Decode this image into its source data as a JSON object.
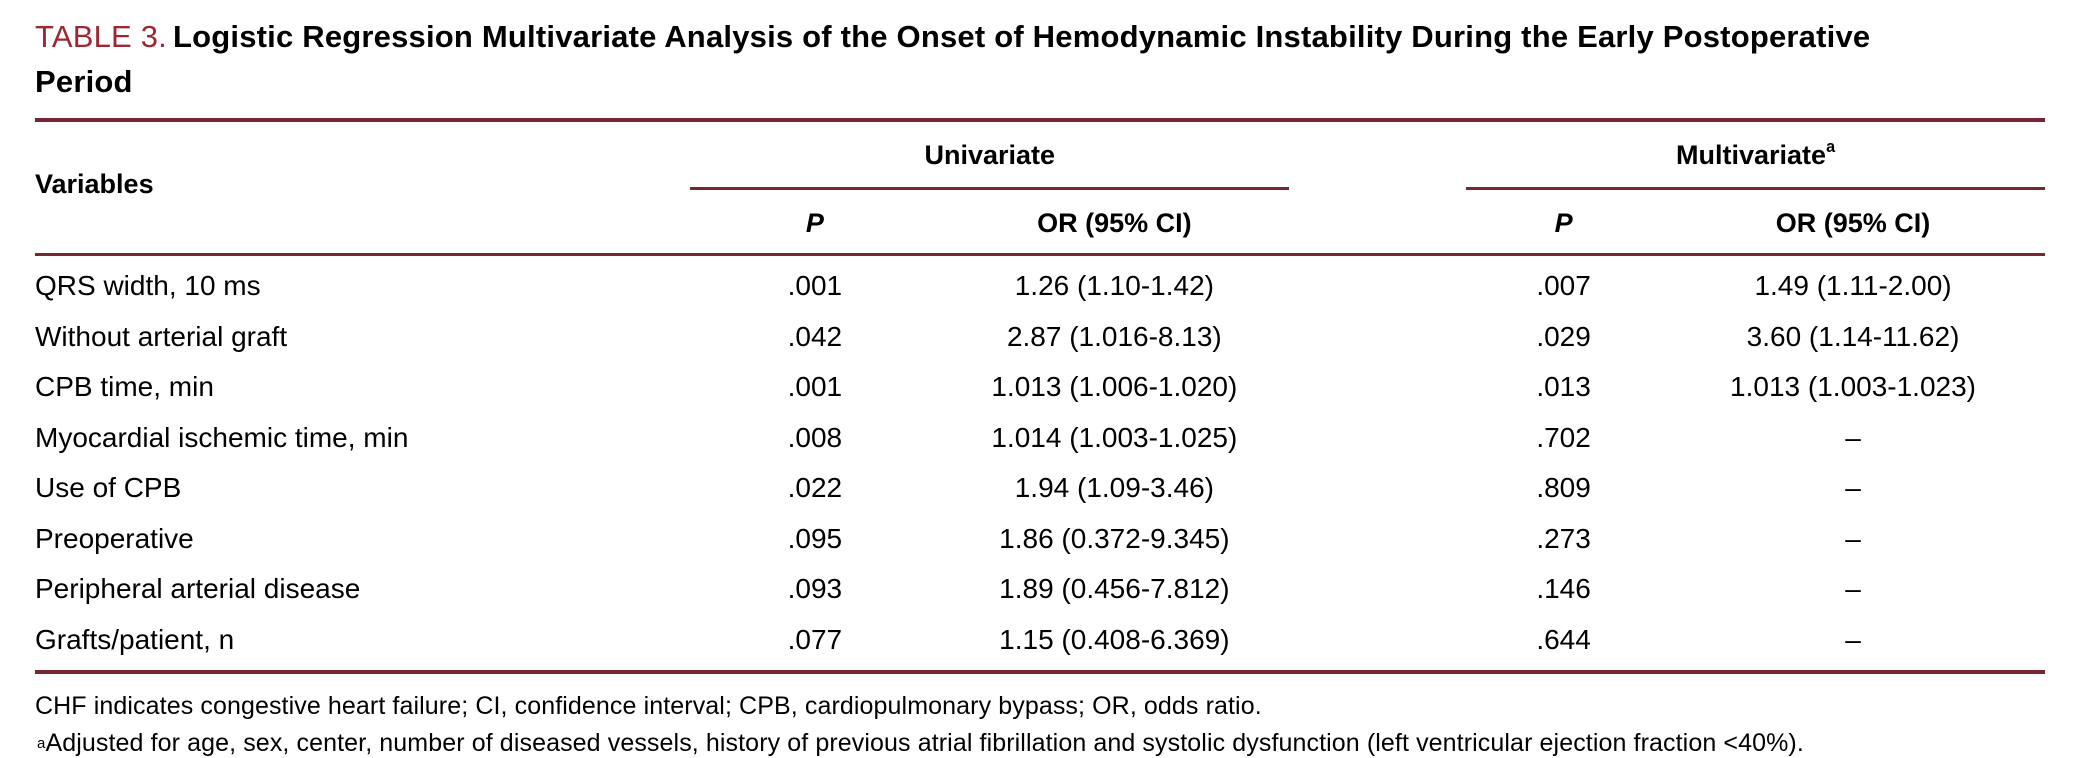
{
  "caption": {
    "label": "TABLE 3.",
    "title": "Logistic Regression Multivariate Analysis of the Onset of Hemodynamic Instability During the Early Postoperative Period"
  },
  "header": {
    "variables": "Variables",
    "univariate": {
      "label": "Univariate",
      "sup": ""
    },
    "multivariate": {
      "label": "Multivariate",
      "sup": "a"
    },
    "p": "P",
    "or_ci": "OR (95% CI)"
  },
  "rows": [
    {
      "variable": "QRS width, 10 ms",
      "uni_p": ".001",
      "uni_or": "1.26 (1.10-1.42)",
      "multi_p": ".007",
      "multi_or": "1.49 (1.11-2.00)"
    },
    {
      "variable": "Without arterial graft",
      "uni_p": ".042",
      "uni_or": "2.87 (1.016-8.13)",
      "multi_p": ".029",
      "multi_or": "3.60 (1.14-11.62)"
    },
    {
      "variable": "CPB time, min",
      "uni_p": ".001",
      "uni_or": "1.013 (1.006-1.020)",
      "multi_p": ".013",
      "multi_or": "1.013 (1.003-1.023)"
    },
    {
      "variable": "Myocardial ischemic time, min",
      "uni_p": ".008",
      "uni_or": "1.014 (1.003-1.025)",
      "multi_p": ".702",
      "multi_or": "–"
    },
    {
      "variable": "Use of CPB",
      "uni_p": ".022",
      "uni_or": "1.94 (1.09-3.46)",
      "multi_p": ".809",
      "multi_or": "–"
    },
    {
      "variable": "Preoperative",
      "uni_p": ".095",
      "uni_or": "1.86 (0.372-9.345)",
      "multi_p": ".273",
      "multi_or": "–"
    },
    {
      "variable": "Peripheral arterial disease",
      "uni_p": ".093",
      "uni_or": "1.89 (0.456-7.812)",
      "multi_p": ".146",
      "multi_or": "–"
    },
    {
      "variable": "Grafts/patient, n",
      "uni_p": ".077",
      "uni_or": "1.15 (0.408-6.369)",
      "multi_p": ".644",
      "multi_or": "–"
    }
  ],
  "footnotes": {
    "abbreviations": "CHF indicates congestive heart failure; CI, confidence interval; CPB, cardiopulmonary bypass; OR, odds ratio.",
    "adjusted_sup": "a",
    "adjusted": "Adjusted for age, sex, center, number of diseased vessels, history of previous atrial fibrillation and systolic dysfunction (left ventricular ejection fraction <40%)."
  },
  "colors": {
    "rule_maroon": "#772634",
    "caption_red": "#9e2733"
  }
}
